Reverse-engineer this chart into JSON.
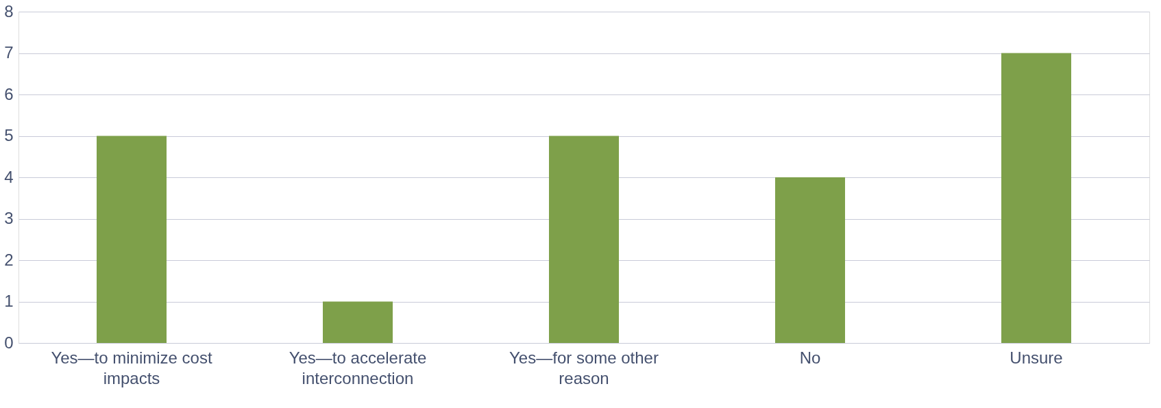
{
  "chart_data": {
    "type": "bar",
    "categories": [
      "Yes—to minimize cost impacts",
      "Yes—to accelerate interconnection",
      "Yes—for some other reason",
      "No",
      "Unsure"
    ],
    "values": [
      5,
      1,
      5,
      4,
      7
    ],
    "color": "#7ea04a",
    "ylim": [
      0,
      8
    ],
    "yticks": [
      0,
      1,
      2,
      3,
      4,
      5,
      6,
      7,
      8
    ],
    "grid": "y",
    "legend": false
  }
}
